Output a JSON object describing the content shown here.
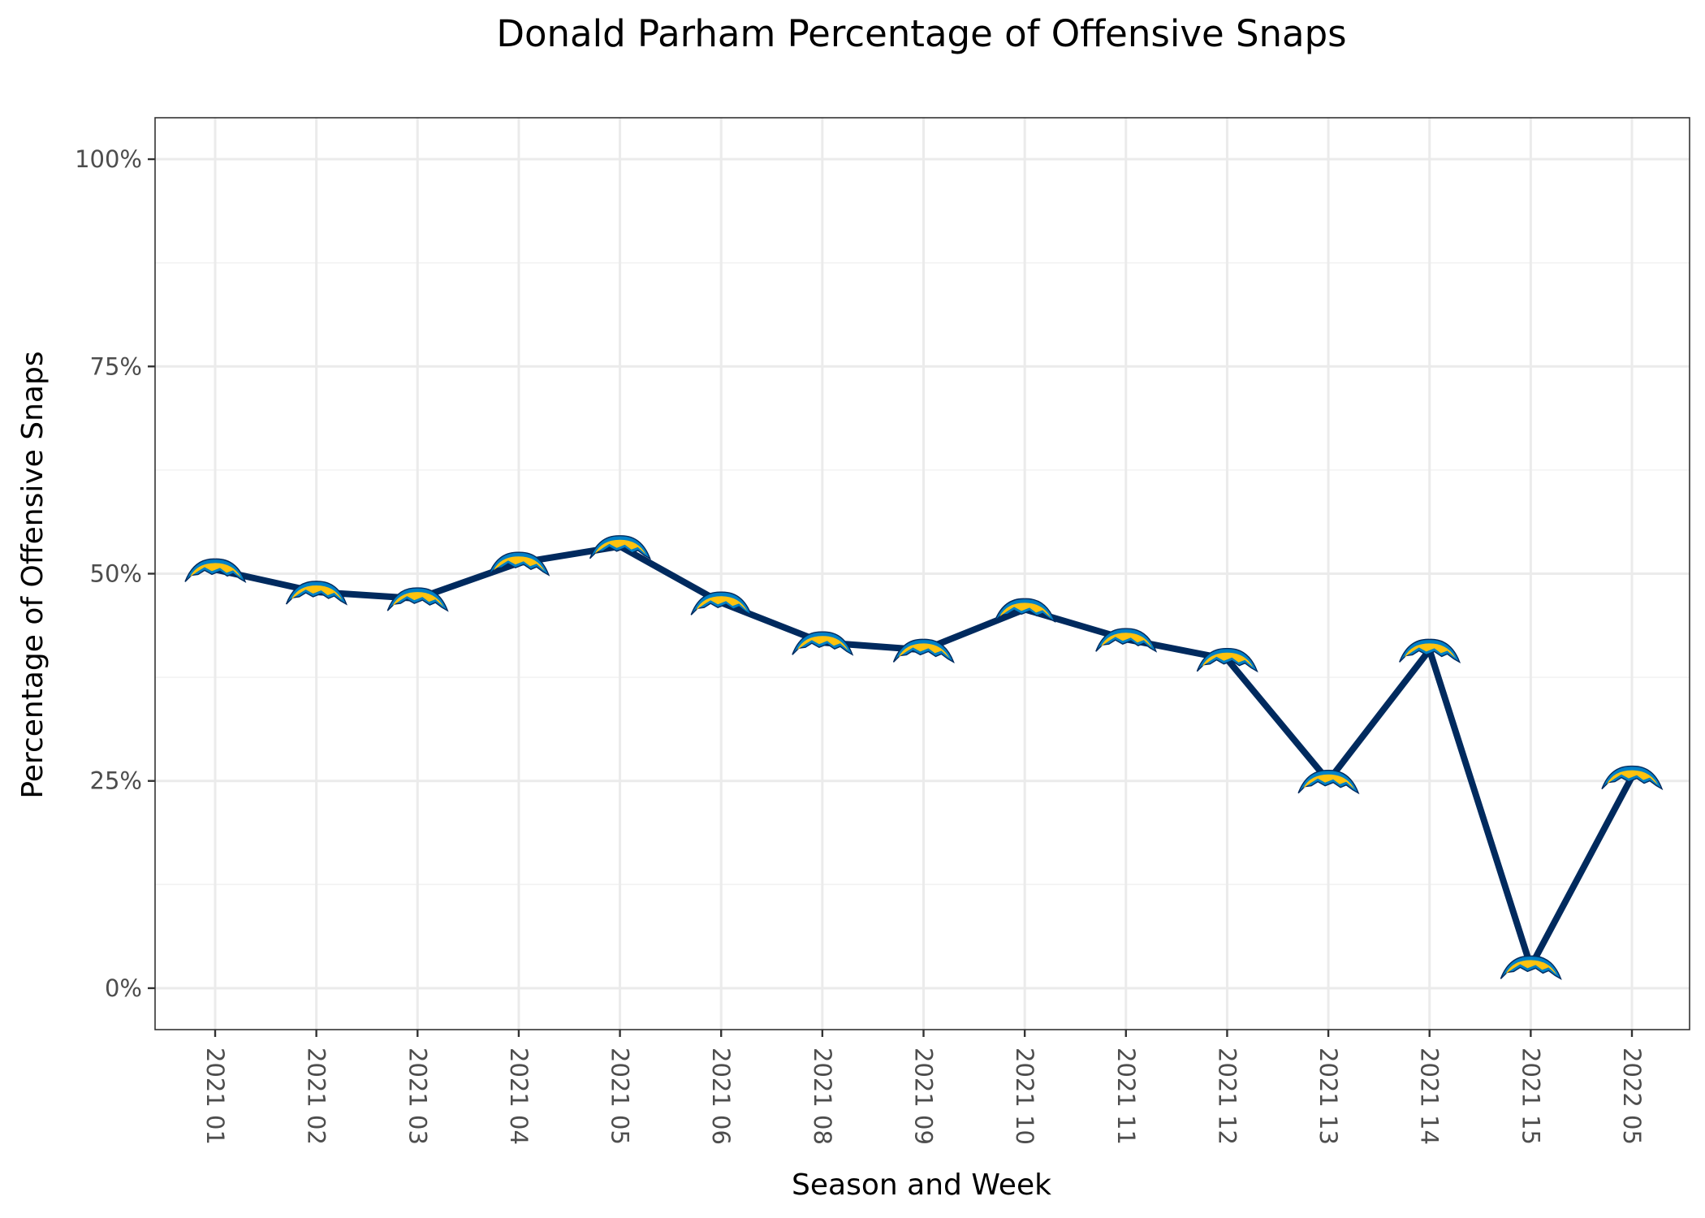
{
  "chart_data": {
    "type": "line",
    "title": "Donald Parham Percentage of Offensive Snaps",
    "xlabel": "Season and Week",
    "ylabel": "Percentage of Offensive Snaps",
    "categories": [
      "2021 01",
      "2021 02",
      "2021 03",
      "2021 04",
      "2021 05",
      "2021 06",
      "2021 08",
      "2021 09",
      "2021 10",
      "2021 11",
      "2021 12",
      "2021 13",
      "2021 14",
      "2021 15",
      "2022 05"
    ],
    "series": [
      {
        "values": [
          0.505,
          0.478,
          0.47,
          0.513,
          0.533,
          0.465,
          0.417,
          0.408,
          0.457,
          0.421,
          0.397,
          0.25,
          0.408,
          0.026,
          0.255
        ],
        "marker": "team-logo-icon"
      }
    ],
    "y_ticks": [
      0,
      0.25,
      0.5,
      0.75,
      1.0
    ],
    "y_tick_labels": [
      "0%",
      "25%",
      "50%",
      "75%",
      "100%"
    ],
    "ylim": [
      -0.05,
      1.05
    ],
    "grid": true,
    "legend": "none",
    "colors": {
      "line": "#002A5E",
      "logo_gold": "#FFC20E",
      "logo_blue": "#0080C6",
      "grid": "#EBEBEB",
      "panel_border": "#333333"
    }
  }
}
